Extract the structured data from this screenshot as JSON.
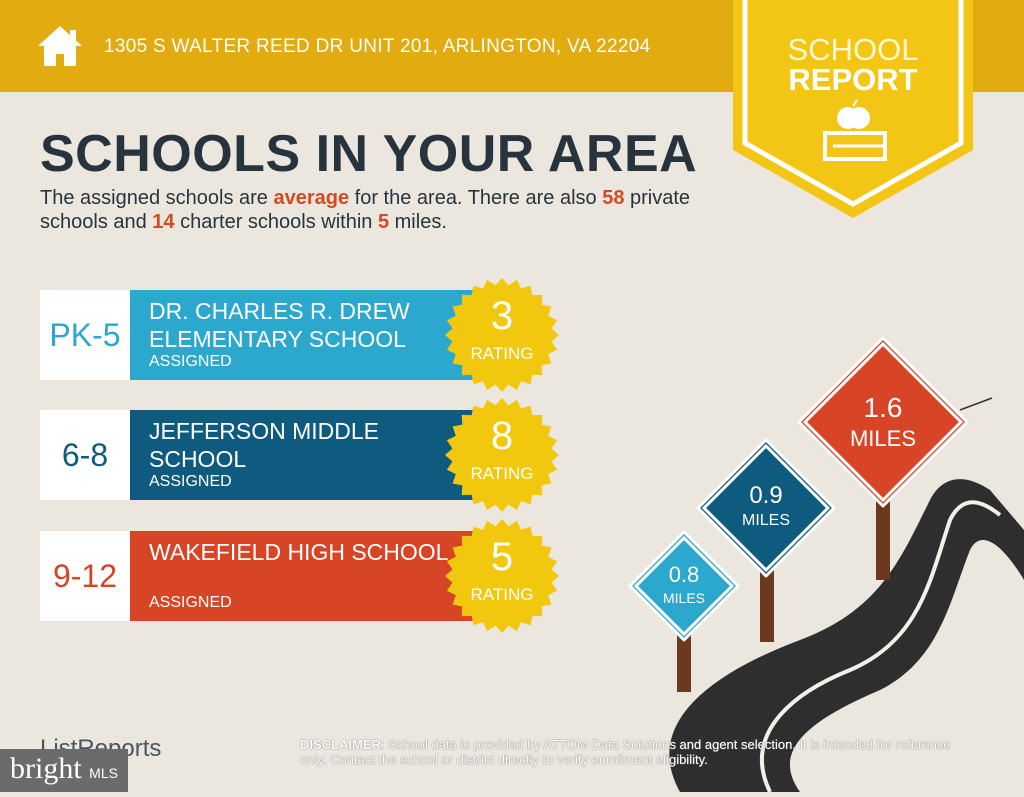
{
  "header": {
    "address": "1305 S WALTER REED DR UNIT 201, ARLINGTON, VA 22204",
    "badge_line1": "SCHOOL",
    "badge_line2": "REPORT"
  },
  "title": "SCHOOLS IN YOUR AREA",
  "summary": {
    "p1": "The assigned schools are ",
    "rating_word": "average",
    "p2": " for the area. There are also ",
    "private_count": "58",
    "p3": " private schools and ",
    "charter_count": "14",
    "p4": " charter schools within ",
    "miles": "5",
    "p5": " miles."
  },
  "schools": [
    {
      "grades": "PK-5",
      "name": "DR. CHARLES R. DREW ELEMENTARY SCHOOL",
      "status": "ASSIGNED",
      "rating": "3",
      "rating_label": "RATING",
      "color": "#2ca7cd",
      "grade_color": "#2ca7cd"
    },
    {
      "grades": "6-8",
      "name": "JEFFERSON MIDDLE SCHOOL",
      "status": "ASSIGNED",
      "rating": "8",
      "rating_label": "RATING",
      "color": "#0f5b80",
      "grade_color": "#0f5b80"
    },
    {
      "grades": "9-12",
      "name": "WAKEFIELD HIGH SCHOOL",
      "status": "ASSIGNED",
      "rating": "5",
      "rating_label": "RATING",
      "color": "#d74426",
      "grade_color": "#d74426"
    }
  ],
  "signs": [
    {
      "value": "0.8",
      "unit": "MILES",
      "color": "#2ca7cd"
    },
    {
      "value": "0.9",
      "unit": "MILES",
      "color": "#0f5b80"
    },
    {
      "value": "1.6",
      "unit": "MILES",
      "color": "#d74426"
    }
  ],
  "footer": {
    "logo": "ListReports",
    "disclaimer_label": "DISCLAIMER",
    "disclaimer": ": School data is provided by ATTOM Data Solutions and agent selection. It is intended for reference only. Contact the school or district directly to verify enrollment eligibility.",
    "watermark": "bright",
    "watermark_suffix": "MLS"
  },
  "colors": {
    "header": "#e2ab0f",
    "badge": "#f3c515",
    "seal": "#f2c80f",
    "background": "#ebe7df"
  }
}
